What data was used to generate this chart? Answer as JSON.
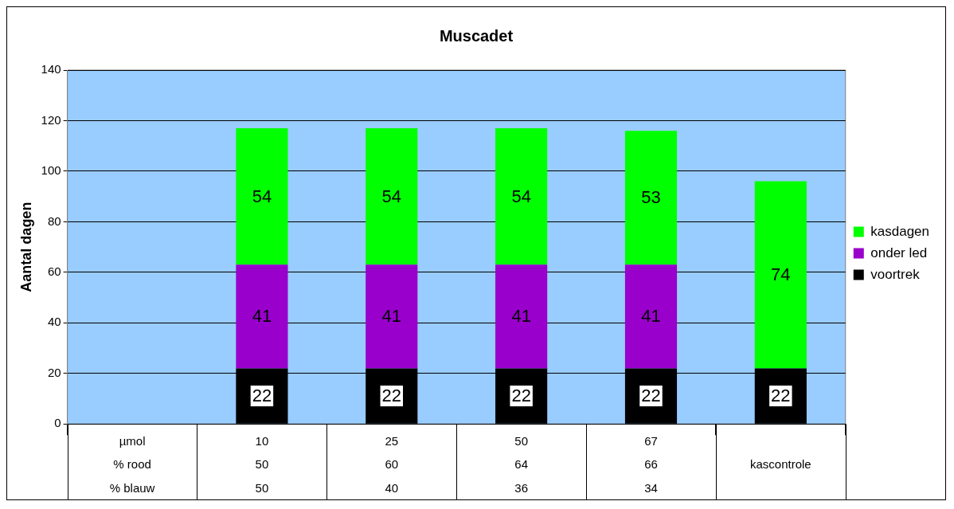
{
  "chart_data": {
    "type": "bar",
    "title": "Muscadet",
    "ylabel": "Aantal dagen",
    "categories": [
      "µmol\n% rood\n% blauw",
      "10\n50\n50",
      "25\n60\n40",
      "50\n64\n36",
      "67\n66\n34",
      "\nkascontrole\n"
    ],
    "series": [
      {
        "name": "voortrek",
        "color": "#000000",
        "values": [
          null,
          22,
          22,
          22,
          22,
          22
        ]
      },
      {
        "name": "onder led",
        "color": "#9900cc",
        "values": [
          null,
          41,
          41,
          41,
          41,
          null
        ]
      },
      {
        "name": "kasdagen",
        "color": "#00ff00",
        "values": [
          null,
          54,
          54,
          54,
          53,
          74
        ]
      }
    ],
    "stacked": true,
    "data_labels": true,
    "ylim": [
      0,
      140
    ],
    "yticks": [
      0,
      20,
      40,
      60,
      80,
      100,
      120,
      140
    ],
    "grid": "y",
    "legend": "right"
  }
}
